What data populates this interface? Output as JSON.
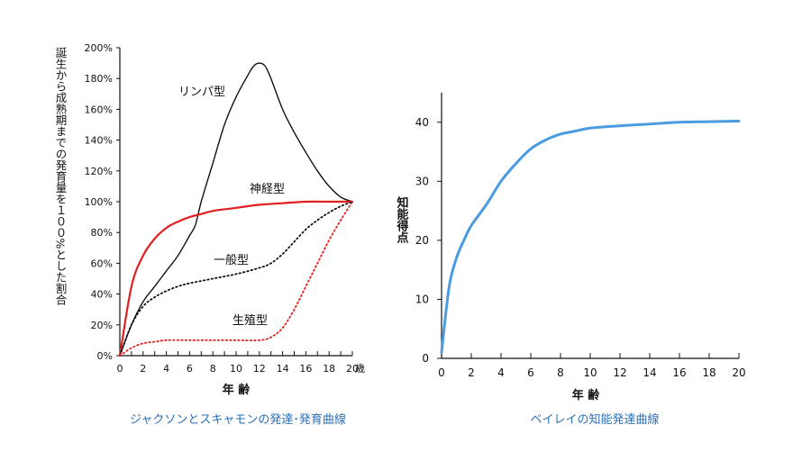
{
  "chart_data": [
    {
      "type": "line",
      "title": "ジャクソンとスキャモンの発達･発育曲線",
      "xlabel": "年 齢",
      "ylabel": "誕生から成熟期までの発育量を１００%とした割合",
      "x_unit_label": "歳",
      "xlim": [
        0,
        20
      ],
      "ylim": [
        0,
        200
      ],
      "x_ticks": [
        "0",
        "2",
        "4",
        "6",
        "8",
        "10",
        "12",
        "14",
        "16",
        "18",
        "20"
      ],
      "y_ticks": [
        "0%",
        "20%",
        "40%",
        "60%",
        "80%",
        "100%",
        "120%",
        "140%",
        "160%",
        "180%",
        "200%"
      ],
      "grid": false,
      "series": [
        {
          "name": "リンパ型",
          "color": "#111111",
          "style": "solid",
          "x": [
            0,
            1,
            2,
            3,
            4,
            5,
            6,
            6.5,
            7,
            8,
            9,
            10,
            11,
            11.5,
            12,
            12.5,
            13,
            14,
            15,
            16,
            17,
            18,
            19,
            20
          ],
          "y": [
            0,
            20,
            35,
            45,
            55,
            65,
            78,
            85,
            100,
            125,
            150,
            168,
            182,
            188,
            190,
            188,
            180,
            160,
            145,
            132,
            120,
            110,
            103,
            100
          ]
        },
        {
          "name": "神経型",
          "color": "#e02020",
          "style": "solid",
          "x": [
            0,
            1,
            2,
            3,
            4,
            5,
            6,
            7,
            8,
            10,
            12,
            14,
            16,
            18,
            20
          ],
          "y": [
            0,
            45,
            65,
            76,
            83,
            87,
            90,
            92,
            94,
            96,
            98,
            99,
            100,
            100,
            100
          ]
        },
        {
          "name": "一般型",
          "color": "#111111",
          "style": "dotted",
          "x": [
            0,
            1,
            2,
            3,
            4,
            5,
            6,
            8,
            10,
            12,
            13,
            14,
            15,
            16,
            17,
            18,
            19,
            20
          ],
          "y": [
            0,
            20,
            32,
            38,
            42,
            45,
            47,
            50,
            53,
            57,
            60,
            66,
            74,
            82,
            88,
            93,
            97,
            100
          ]
        },
        {
          "name": "生殖型",
          "color": "#e02020",
          "style": "dotted",
          "x": [
            0,
            1,
            2,
            3,
            4,
            6,
            8,
            10,
            12,
            13,
            14,
            15,
            16,
            17,
            18,
            19,
            20
          ],
          "y": [
            0,
            5,
            8,
            9,
            10,
            10,
            10,
            10,
            10,
            12,
            18,
            30,
            45,
            60,
            75,
            88,
            100
          ]
        }
      ]
    },
    {
      "type": "line",
      "title": "ベイレイの知能発達曲線",
      "xlabel": "年 齢",
      "ylabel": "知能得点",
      "xlim": [
        0,
        20
      ],
      "ylim": [
        0,
        45
      ],
      "x_ticks": [
        "0",
        "2",
        "4",
        "6",
        "8",
        "10",
        "12",
        "14",
        "16",
        "18",
        "20"
      ],
      "y_ticks": [
        "0",
        "10",
        "20",
        "30",
        "40"
      ],
      "grid": false,
      "series": [
        {
          "color": "#4a9be0",
          "style": "solid",
          "x": [
            0,
            0.5,
            1,
            1.5,
            2,
            3,
            4,
            5,
            6,
            7,
            8,
            9,
            10,
            12,
            14,
            16,
            18,
            20
          ],
          "y": [
            1,
            12,
            17,
            20,
            22.5,
            26,
            30,
            33,
            35.5,
            37,
            38,
            38.5,
            39,
            39.4,
            39.7,
            40,
            40.1,
            40.2
          ]
        }
      ]
    }
  ]
}
